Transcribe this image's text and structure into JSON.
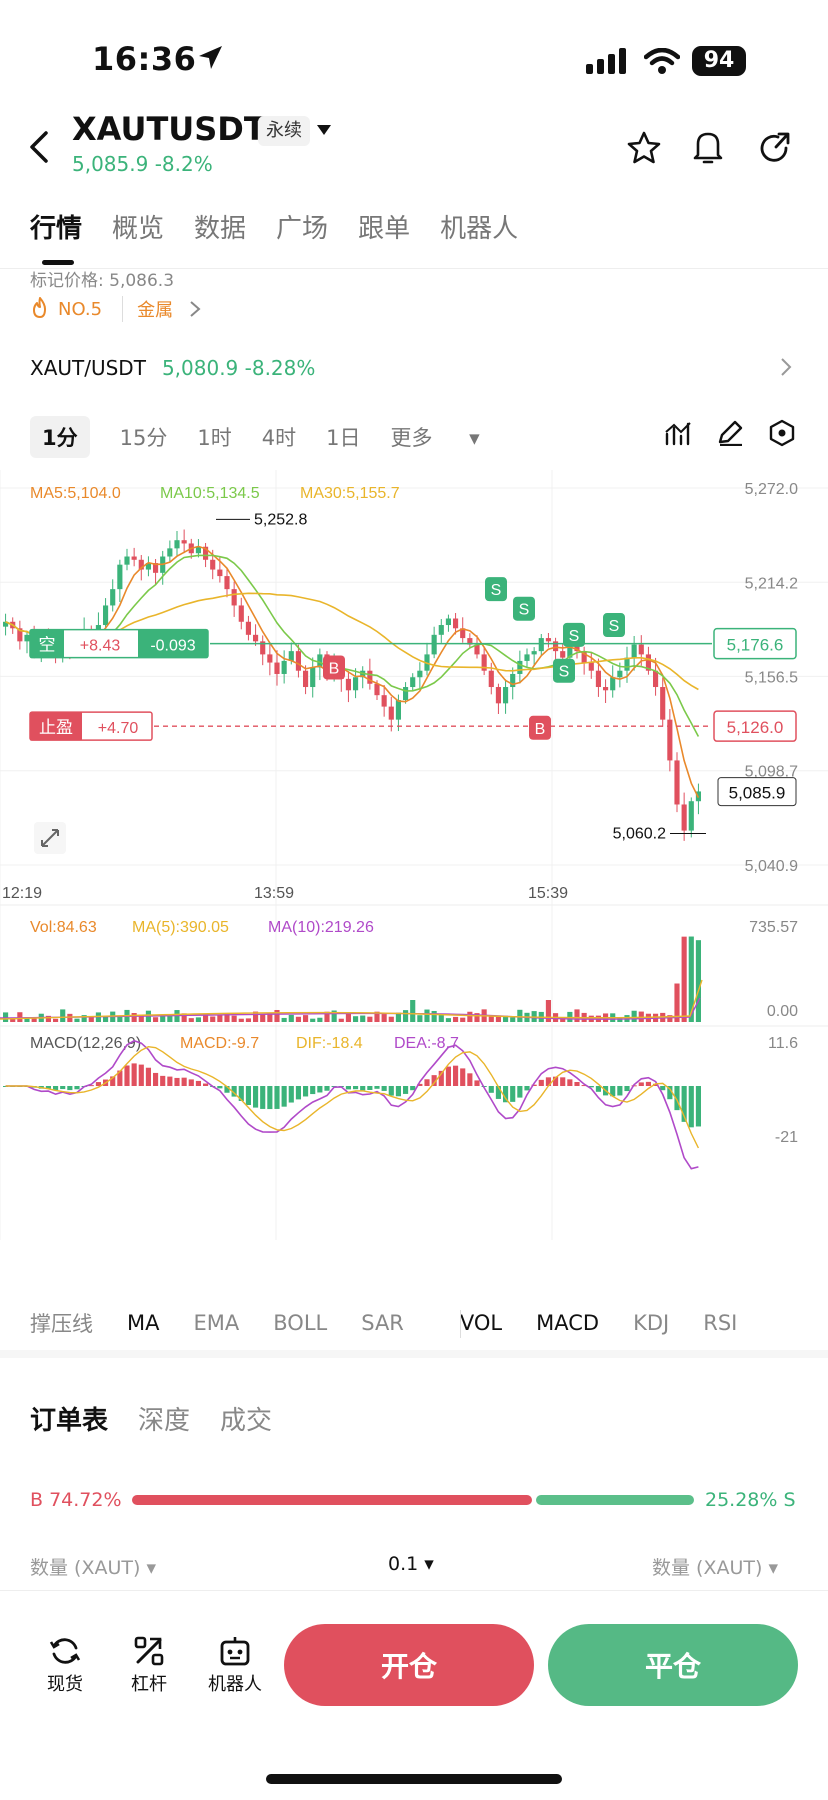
{
  "status": {
    "time": "16:36",
    "battery": "94"
  },
  "header": {
    "symbol": "XAUTUSDT",
    "tag": "永续",
    "price_change": "5,085.9 -8.2%"
  },
  "tabs": [
    "行情",
    "概览",
    "数据",
    "广场",
    "跟单",
    "机器人"
  ],
  "info": {
    "mark_price": "标记价格: 5,086.3",
    "rank": "NO.5",
    "category": "金属"
  },
  "spot": {
    "pair": "XAUT/USDT",
    "value": "5,080.9 -8.28%"
  },
  "intervals": [
    "1分",
    "15分",
    "1时",
    "4时",
    "1日",
    "更多"
  ],
  "chart_data": {
    "type": "candlestick",
    "ma_legend": {
      "ma5": "MA5:5,104.0",
      "ma10": "MA10:5,134.5",
      "ma30": "MA30:5,155.7"
    },
    "y_ticks": [
      "5,272.0",
      "5,214.2",
      "5,156.5",
      "5,098.7",
      "5,040.9"
    ],
    "y_tick_values": [
      5272.0,
      5214.2,
      5156.5,
      5098.7,
      5040.9
    ],
    "ylim": [
      5040.9,
      5272.0
    ],
    "x_ticks": [
      "12:19",
      "13:59",
      "15:39"
    ],
    "high_label": "5,252.8",
    "low_label": "5,060.2",
    "position": {
      "side": "空",
      "pnl": "+8.43",
      "rate": "-0.093",
      "price": "5,176.6",
      "value": 5176.6
    },
    "take_profit": {
      "label": "止盈",
      "pnl": "+4.70",
      "price": "5,126.0",
      "value": 5126.0
    },
    "last_price": {
      "label": "5,085.9",
      "value": 5085.9
    },
    "path": [
      5190,
      5186,
      5178,
      5182,
      5172,
      5180,
      5175,
      5168,
      5176,
      5172,
      5180,
      5185,
      5178,
      5188,
      5200,
      5210,
      5225,
      5230,
      5228,
      5222,
      5226,
      5220,
      5230,
      5235,
      5240,
      5238,
      5232,
      5236,
      5228,
      5222,
      5218,
      5210,
      5200,
      5190,
      5182,
      5178,
      5170,
      5165,
      5158,
      5166,
      5172,
      5160,
      5150,
      5162,
      5170,
      5158,
      5165,
      5155,
      5148,
      5156,
      5160,
      5152,
      5145,
      5138,
      5130,
      5142,
      5150,
      5156,
      5160,
      5170,
      5182,
      5188,
      5192,
      5186,
      5180,
      5176,
      5170,
      5160,
      5150,
      5140,
      5150,
      5158,
      5166,
      5170,
      5172,
      5180,
      5178,
      5172,
      5168,
      5175,
      5172,
      5165,
      5160,
      5150,
      5148,
      5156,
      5160,
      5168,
      5176,
      5170,
      5160,
      5150,
      5130,
      5105,
      5078,
      5062,
      5080,
      5086
    ],
    "volume": {
      "legend": {
        "vol": "Vol:84.63",
        "ma5": "MA(5):390.05",
        "ma10": "MA(10):219.26"
      },
      "y_ticks": [
        "735.57",
        "0.00"
      ]
    },
    "macd": {
      "legend": {
        "title": "MACD(12,26,9)",
        "macd": "MACD:-9.7",
        "dif": "DIF:-18.4",
        "dea": "DEA:-8.7"
      },
      "y_ticks": [
        "11.6",
        "-21"
      ]
    }
  },
  "indicators": [
    "撑压线",
    "MA",
    "EMA",
    "BOLL",
    "SAR",
    "VOL",
    "MACD",
    "KDJ",
    "RSI"
  ],
  "order_tabs": [
    "订单表",
    "深度",
    "成交"
  ],
  "ratio": {
    "buy": "B 74.72%",
    "sell": "25.28% S",
    "buy_fraction": 0.7472
  },
  "book": {
    "qty_left": "数量 (XAUT)",
    "precision": "0.1",
    "qty_right": "数量 (XAUT)"
  },
  "bottom_nav": [
    "现货",
    "杠杆",
    "机器人"
  ],
  "actions": {
    "open": "开仓",
    "close": "平仓"
  }
}
